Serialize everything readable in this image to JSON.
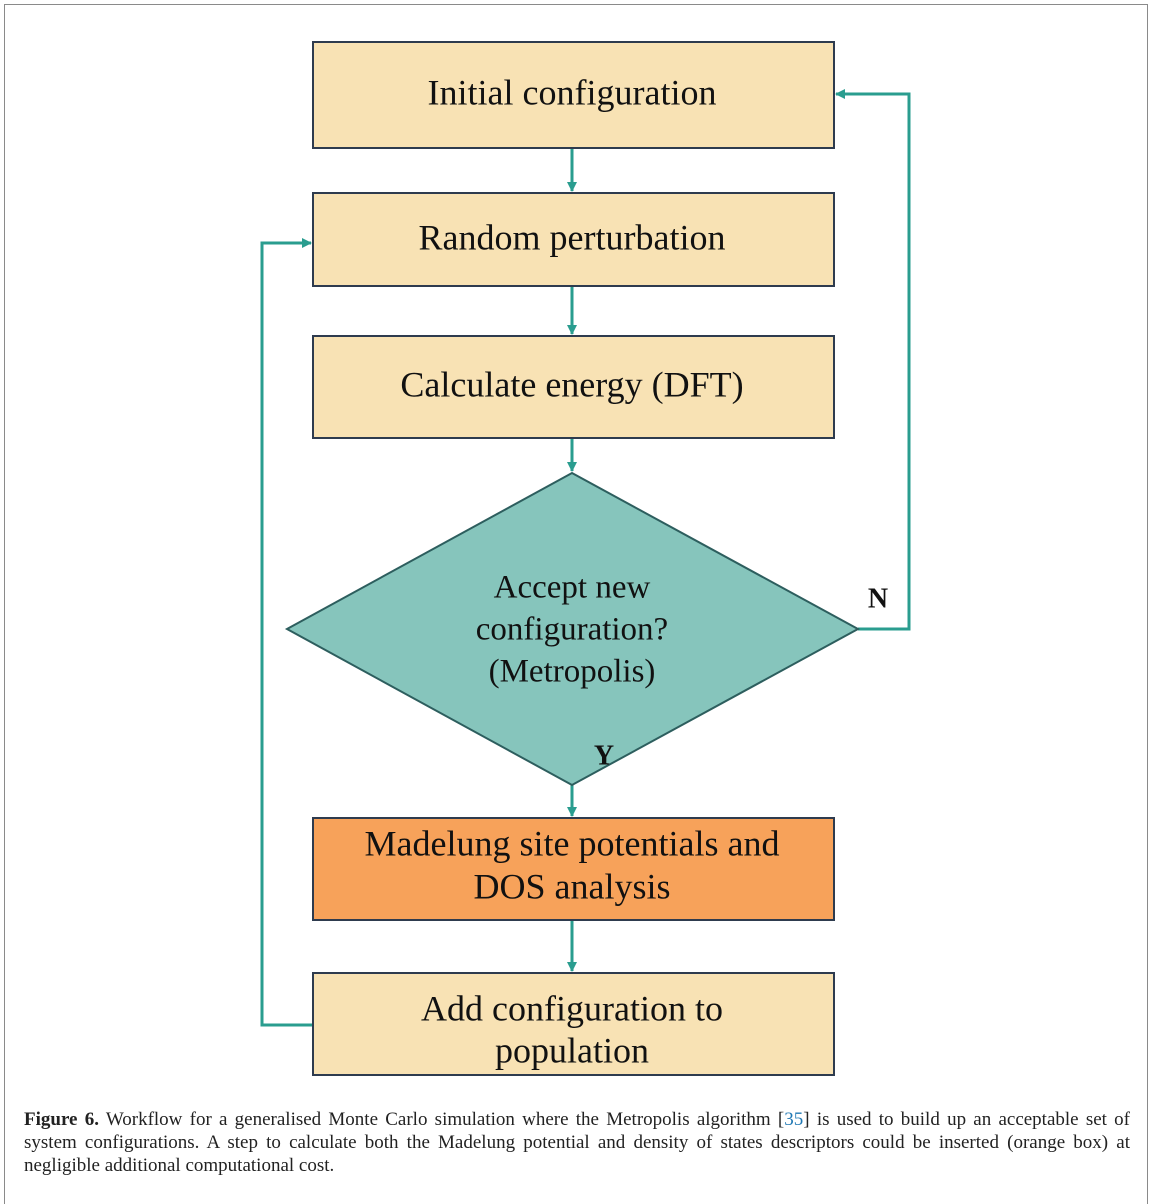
{
  "nodes": [
    {
      "lines": [
        "Initial configuration"
      ]
    },
    {
      "lines": [
        "Random perturbation"
      ]
    },
    {
      "lines": [
        "Calculate energy (DFT)"
      ]
    },
    {
      "lines": [
        "Accept new",
        "configuration?",
        "(Metropolis)"
      ]
    },
    {
      "lines": [
        "Madelung site potentials and",
        "DOS analysis"
      ]
    },
    {
      "lines": [
        "Add configuration to",
        "population"
      ]
    }
  ],
  "edges": [
    {
      "label": "N"
    },
    {
      "label": "Y"
    }
  ],
  "caption": {
    "label": "Figure 6.",
    "text_before": " Workflow for a generalised Monte Carlo simulation where the Metropolis algorithm [",
    "ref": "35",
    "text_after": "] is used to build up an acceptable set of system configurations. A step to calculate both the Madelung potential and density of states descriptors could be inserted (orange box) at negligible additional computational cost."
  }
}
